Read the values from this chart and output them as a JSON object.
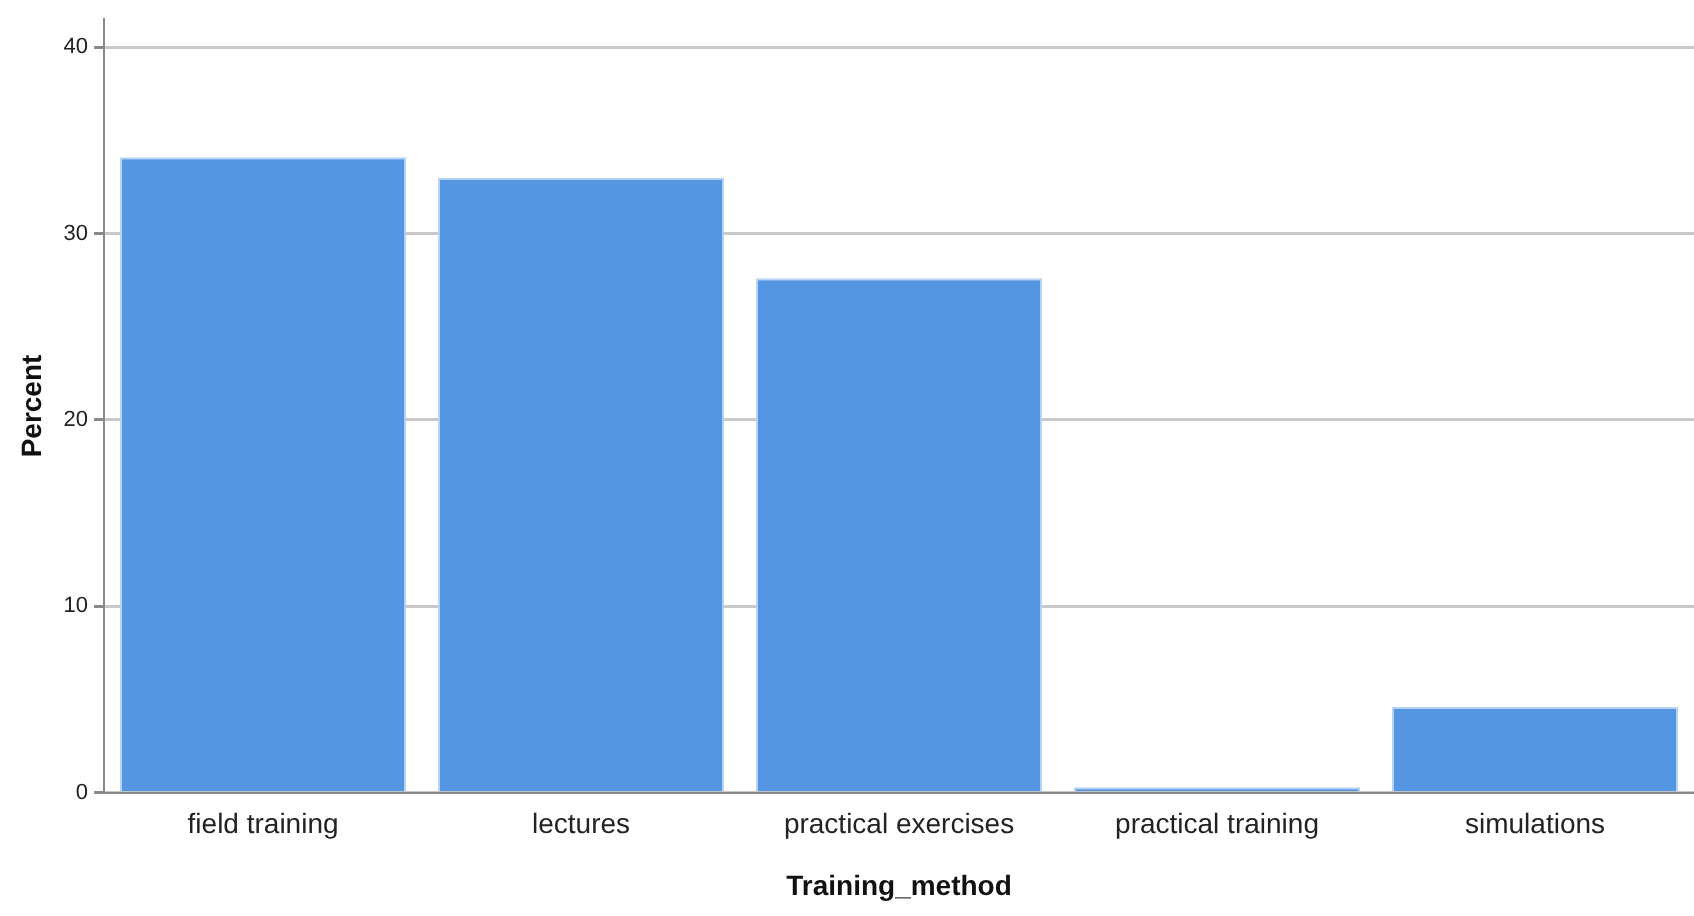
{
  "chart_data": {
    "type": "bar",
    "xlabel": "Training_method",
    "ylabel": "Percent",
    "categories": [
      "field training",
      "lectures",
      "practical exercises",
      "practical training",
      "simulations"
    ],
    "values": [
      34.1,
      33.0,
      27.6,
      0.3,
      4.6
    ],
    "color": "#5596e3",
    "ylim": [
      0,
      41.5
    ],
    "yticks": [
      0,
      10,
      20,
      30,
      40
    ],
    "grid": "y"
  }
}
